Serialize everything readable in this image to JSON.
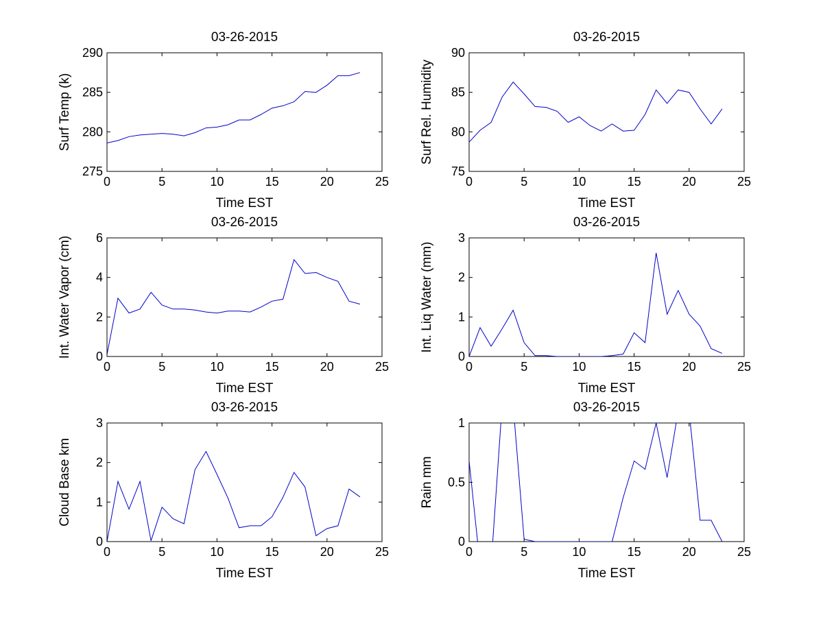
{
  "figure": {
    "background": "#ffffff",
    "line_color": "#0000cc"
  },
  "chart_data": [
    {
      "type": "line",
      "title": "03-26-2015",
      "xlabel": "Time EST",
      "ylabel": "Surf Temp (k)",
      "xlim": [
        0,
        25
      ],
      "ylim": [
        275,
        290
      ],
      "xticks": [
        "0",
        "5",
        "10",
        "15",
        "20",
        "25"
      ],
      "yticks": [
        "275",
        "280",
        "285",
        "290"
      ],
      "x": [
        0,
        1,
        2,
        3,
        4,
        5,
        6,
        7,
        8,
        9,
        10,
        11,
        12,
        13,
        14,
        15,
        16,
        17,
        18,
        19,
        20,
        21,
        22,
        23
      ],
      "series": [
        {
          "values": [
            278.6,
            278.9,
            279.4,
            279.6,
            279.7,
            279.8,
            279.7,
            279.5,
            279.9,
            280.5,
            280.6,
            280.9,
            281.5,
            281.5,
            282.2,
            283.0,
            283.3,
            283.8,
            285.1,
            285.0,
            285.9,
            287.1,
            287.1,
            287.5
          ]
        }
      ]
    },
    {
      "type": "line",
      "title": "03-26-2015",
      "xlabel": "Time EST",
      "ylabel": "Surf Rel. Humidity",
      "xlim": [
        0,
        25
      ],
      "ylim": [
        75,
        90
      ],
      "xticks": [
        "0",
        "5",
        "10",
        "15",
        "20",
        "25"
      ],
      "yticks": [
        "75",
        "80",
        "85",
        "90"
      ],
      "x": [
        0,
        1,
        2,
        3,
        4,
        5,
        6,
        7,
        8,
        9,
        10,
        11,
        12,
        13,
        14,
        15,
        16,
        17,
        18,
        19,
        20,
        21,
        22,
        23
      ],
      "series": [
        {
          "values": [
            78.7,
            80.2,
            81.2,
            84.4,
            86.3,
            84.8,
            83.2,
            83.1,
            82.6,
            81.2,
            81.9,
            80.8,
            80.1,
            81.0,
            80.1,
            80.2,
            82.2,
            85.3,
            83.6,
            85.3,
            85.0,
            82.9,
            81.0,
            82.9
          ]
        }
      ]
    },
    {
      "type": "line",
      "title": "03-26-2015",
      "xlabel": "Time EST",
      "ylabel": "Int. Water Vapor (cm)",
      "xlim": [
        0,
        25
      ],
      "ylim": [
        0,
        6
      ],
      "xticks": [
        "0",
        "5",
        "10",
        "15",
        "20",
        "25"
      ],
      "yticks": [
        "0",
        "2",
        "4",
        "6"
      ],
      "x": [
        0,
        1,
        2,
        3,
        4,
        5,
        6,
        7,
        8,
        9,
        10,
        11,
        12,
        13,
        14,
        15,
        16,
        17,
        18,
        19,
        20,
        21,
        22,
        23
      ],
      "series": [
        {
          "values": [
            0.1,
            2.95,
            2.2,
            2.4,
            3.25,
            2.6,
            2.4,
            2.4,
            2.35,
            2.25,
            2.2,
            2.3,
            2.3,
            2.25,
            2.5,
            2.8,
            2.9,
            4.9,
            4.2,
            4.25,
            4.0,
            3.8,
            2.8,
            2.65
          ]
        }
      ]
    },
    {
      "type": "line",
      "title": "03-26-2015",
      "xlabel": "Time EST",
      "ylabel": "Int. Liq Water (mm)",
      "xlim": [
        0,
        25
      ],
      "ylim": [
        0,
        3
      ],
      "xticks": [
        "0",
        "5",
        "10",
        "15",
        "20",
        "25"
      ],
      "yticks": [
        "0",
        "1",
        "2",
        "3"
      ],
      "x": [
        0,
        1,
        2,
        3,
        4,
        5,
        6,
        7,
        8,
        9,
        10,
        11,
        12,
        13,
        14,
        15,
        16,
        17,
        18,
        19,
        20,
        21,
        22,
        23
      ],
      "series": [
        {
          "values": [
            0.0,
            0.73,
            0.26,
            0.7,
            1.17,
            0.35,
            0.02,
            0.02,
            0.0,
            0.0,
            0.0,
            0.0,
            0.0,
            0.02,
            0.06,
            0.6,
            0.35,
            2.62,
            1.07,
            1.67,
            1.07,
            0.77,
            0.2,
            0.08
          ]
        }
      ]
    },
    {
      "type": "line",
      "title": "03-26-2015",
      "xlabel": "Time EST",
      "ylabel": "Cloud Base km",
      "xlim": [
        0,
        25
      ],
      "ylim": [
        0,
        3
      ],
      "xticks": [
        "0",
        "5",
        "10",
        "15",
        "20",
        "25"
      ],
      "yticks": [
        "0",
        "1",
        "2",
        "3"
      ],
      "x": [
        0,
        1,
        2,
        3,
        4,
        5,
        6,
        7,
        8,
        9,
        10,
        11,
        12,
        13,
        14,
        15,
        16,
        17,
        18,
        19,
        20,
        21,
        22,
        23
      ],
      "series": [
        {
          "values": [
            0.0,
            1.52,
            0.82,
            1.52,
            0.02,
            0.87,
            0.58,
            0.45,
            1.82,
            2.28,
            1.7,
            1.1,
            0.35,
            0.4,
            0.4,
            0.63,
            1.12,
            1.75,
            1.38,
            0.15,
            0.33,
            0.4,
            1.33,
            1.13
          ]
        }
      ]
    },
    {
      "type": "line",
      "title": "03-26-2015",
      "xlabel": "Time EST",
      "ylabel": "Rain mm",
      "xlim": [
        0,
        25
      ],
      "ylim": [
        0,
        1
      ],
      "xticks": [
        "0",
        "5",
        "10",
        "15",
        "20",
        "25"
      ],
      "yticks": [
        "0",
        "0.5",
        "1"
      ],
      "x": [
        0,
        1,
        2,
        3,
        4,
        5,
        6,
        7,
        8,
        9,
        10,
        11,
        12,
        13,
        14,
        15,
        16,
        17,
        18,
        19,
        20,
        21,
        22,
        23
      ],
      "series": [
        {
          "values": [
            0.68,
            -0.2,
            -0.2,
            1.15,
            1.15,
            0.02,
            0.0,
            0.0,
            0.0,
            0.0,
            0.0,
            0.0,
            0.0,
            0.0,
            0.37,
            0.68,
            0.61,
            1.0,
            0.54,
            1.1,
            1.1,
            0.18,
            0.18,
            0.0
          ]
        }
      ]
    }
  ]
}
